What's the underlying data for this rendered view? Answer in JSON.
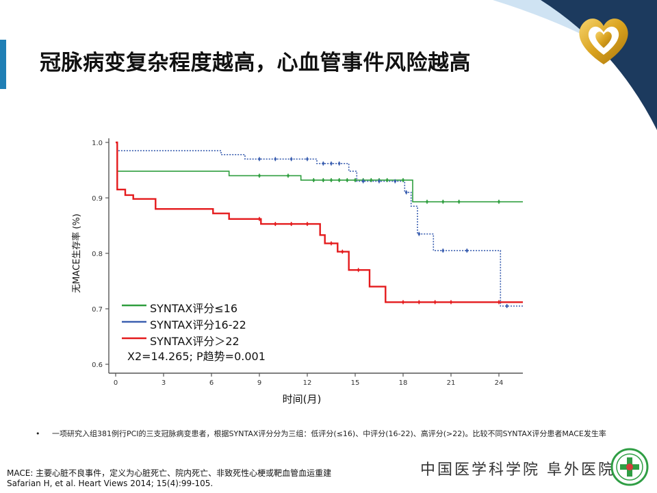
{
  "slide": {
    "title": "冠脉病变复杂程度越高，心血管事件风险越高"
  },
  "colors": {
    "title_accent": "#1f7fb5",
    "corner_navy": "#1c3a5e",
    "logo_gold": "#d9a21e",
    "low_group": "#2e9e3e",
    "mid_group": "#3b5fb0",
    "high_group": "#e41a1c",
    "emblem_green": "#2f9e44"
  },
  "chart_data": {
    "type": "line",
    "subtype": "kaplan-meier",
    "xlabel": "时间(月)",
    "ylabel": "无MACE生存率 (%)",
    "x_ticks": [
      0,
      3,
      6,
      9,
      12,
      15,
      18,
      21,
      24
    ],
    "y_ticks": [
      0.6,
      0.7,
      0.8,
      0.9,
      1.0
    ],
    "y_tick_labels": [
      "0.6",
      "0.7",
      "0.8",
      "0.9",
      "1.0"
    ],
    "xlim": [
      0,
      25.5
    ],
    "ylim": [
      0.6,
      1.0
    ],
    "legend_position": "lower-left",
    "annotation": "X2=14.265; P趋势=0.001",
    "series": [
      {
        "name": "SYNTAX评分≤16",
        "color": "#2e9e3e",
        "style": "solid",
        "steps": [
          [
            0,
            1.0
          ],
          [
            0.1,
            0.948
          ],
          [
            7,
            0.948
          ],
          [
            7.1,
            0.94
          ],
          [
            11.5,
            0.94
          ],
          [
            11.6,
            0.932
          ],
          [
            18.5,
            0.932
          ],
          [
            18.6,
            0.893
          ],
          [
            25.5,
            0.893
          ]
        ],
        "censor": [
          [
            9,
            0.94
          ],
          [
            10.8,
            0.94
          ],
          [
            12.4,
            0.932
          ],
          [
            13,
            0.932
          ],
          [
            13.5,
            0.932
          ],
          [
            14,
            0.932
          ],
          [
            14.5,
            0.932
          ],
          [
            15,
            0.932
          ],
          [
            15.5,
            0.932
          ],
          [
            16,
            0.932
          ],
          [
            16.5,
            0.932
          ],
          [
            17,
            0.932
          ],
          [
            18,
            0.932
          ],
          [
            19.5,
            0.893
          ],
          [
            20.5,
            0.893
          ],
          [
            21.5,
            0.893
          ],
          [
            24,
            0.893
          ]
        ]
      },
      {
        "name": "SYNTAX评分16-22",
        "color": "#3b5fb0",
        "style": "dotted",
        "steps": [
          [
            0,
            1.0
          ],
          [
            0.1,
            0.985
          ],
          [
            6.5,
            0.985
          ],
          [
            6.6,
            0.978
          ],
          [
            8,
            0.978
          ],
          [
            8.1,
            0.97
          ],
          [
            12.5,
            0.97
          ],
          [
            12.6,
            0.962
          ],
          [
            14.5,
            0.962
          ],
          [
            14.6,
            0.948
          ],
          [
            15,
            0.948
          ],
          [
            15.1,
            0.93
          ],
          [
            18,
            0.93
          ],
          [
            18.1,
            0.91
          ],
          [
            18.4,
            0.91
          ],
          [
            18.5,
            0.885
          ],
          [
            18.8,
            0.885
          ],
          [
            18.9,
            0.835
          ],
          [
            19.8,
            0.835
          ],
          [
            19.9,
            0.805
          ],
          [
            24,
            0.805
          ],
          [
            24.1,
            0.705
          ],
          [
            25.5,
            0.705
          ]
        ],
        "censor": [
          [
            9,
            0.97
          ],
          [
            10,
            0.97
          ],
          [
            11,
            0.97
          ],
          [
            12,
            0.97
          ],
          [
            13,
            0.962
          ],
          [
            13.5,
            0.962
          ],
          [
            14,
            0.962
          ],
          [
            15.5,
            0.93
          ],
          [
            16.5,
            0.93
          ],
          [
            17.5,
            0.93
          ],
          [
            18.2,
            0.91
          ],
          [
            19,
            0.835
          ],
          [
            20.5,
            0.805
          ],
          [
            22,
            0.805
          ],
          [
            24.5,
            0.705
          ]
        ]
      },
      {
        "name": "SYNTAX评分＞22",
        "color": "#e41a1c",
        "style": "solid",
        "steps": [
          [
            0,
            1.0
          ],
          [
            0.1,
            0.915
          ],
          [
            0.5,
            0.915
          ],
          [
            0.6,
            0.905
          ],
          [
            1,
            0.905
          ],
          [
            1.1,
            0.898
          ],
          [
            2.4,
            0.898
          ],
          [
            2.5,
            0.88
          ],
          [
            6,
            0.88
          ],
          [
            6.1,
            0.872
          ],
          [
            7,
            0.872
          ],
          [
            7.1,
            0.862
          ],
          [
            9,
            0.862
          ],
          [
            9.1,
            0.853
          ],
          [
            12.7,
            0.853
          ],
          [
            12.8,
            0.833
          ],
          [
            13,
            0.833
          ],
          [
            13.1,
            0.818
          ],
          [
            13.8,
            0.818
          ],
          [
            13.9,
            0.803
          ],
          [
            14.5,
            0.803
          ],
          [
            14.6,
            0.77
          ],
          [
            15.8,
            0.77
          ],
          [
            15.9,
            0.74
          ],
          [
            16.8,
            0.74
          ],
          [
            16.9,
            0.712
          ],
          [
            25.5,
            0.712
          ]
        ],
        "censor": [
          [
            9,
            0.862
          ],
          [
            10,
            0.853
          ],
          [
            11,
            0.853
          ],
          [
            12,
            0.853
          ],
          [
            13.5,
            0.818
          ],
          [
            14.2,
            0.803
          ],
          [
            15.2,
            0.77
          ],
          [
            18,
            0.712
          ],
          [
            19,
            0.712
          ],
          [
            20,
            0.712
          ],
          [
            21,
            0.712
          ],
          [
            24,
            0.712
          ]
        ]
      }
    ]
  },
  "bullet": {
    "marker": "•",
    "text": "一项研究入组381例行PCI的三支冠脉病变患者，根据SYNTAX评分分为三组：低评分(≤16)、中评分(16-22)、高评分(>22)。比较不同SYNTAX评分患者MACE发生率"
  },
  "footnote": {
    "line1": "MACE: 主要心脏不良事件，定义为心脏死亡、院内死亡、非致死性心梗或靶血管血运重建",
    "line2": "Safarian H, et al. Heart Views 2014; 15(4):99-105."
  },
  "institution": {
    "name": "中国医学科学院 阜外医院"
  }
}
